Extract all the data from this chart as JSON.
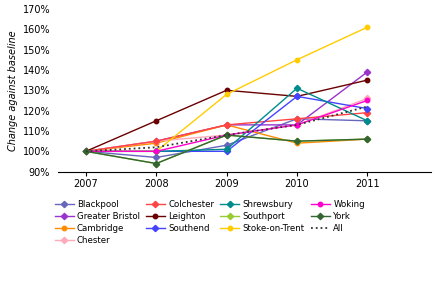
{
  "years": [
    2007,
    2008,
    2009,
    2010,
    2011
  ],
  "series": {
    "Blackpool": {
      "color": "#6666bb",
      "marker": "D",
      "data": [
        100,
        97,
        103,
        116,
        115
      ]
    },
    "Greater Bristol": {
      "color": "#9933cc",
      "marker": "D",
      "data": [
        100,
        105,
        113,
        113,
        139
      ]
    },
    "Cambridge": {
      "color": "#ff8c00",
      "marker": "o",
      "data": [
        100,
        104,
        113,
        104,
        106
      ]
    },
    "Chester": {
      "color": "#ffaabb",
      "marker": "D",
      "data": [
        100,
        105,
        108,
        113,
        126
      ]
    },
    "Colchester": {
      "color": "#ff4444",
      "marker": "D",
      "data": [
        100,
        105,
        113,
        116,
        119
      ]
    },
    "Leighton": {
      "color": "#6B0000",
      "marker": "o",
      "data": [
        100,
        115,
        130,
        127,
        135
      ]
    },
    "Southend": {
      "color": "#4444ff",
      "marker": "D",
      "data": [
        100,
        100,
        100,
        127,
        121
      ]
    },
    "Shrewsbury": {
      "color": "#008B8B",
      "marker": "D",
      "data": [
        100,
        100,
        101,
        131,
        115
      ]
    },
    "Southport": {
      "color": "#99cc33",
      "marker": "D",
      "data": [
        100,
        94,
        108,
        105,
        106
      ]
    },
    "Stoke-on-Trent": {
      "color": "#ffcc00",
      "marker": "o",
      "data": [
        100,
        100,
        128,
        145,
        161
      ]
    },
    "Woking": {
      "color": "#ff00cc",
      "marker": "o",
      "data": [
        100,
        100,
        108,
        113,
        125
      ]
    },
    "York": {
      "color": "#336633",
      "marker": "D",
      "data": [
        100,
        94,
        108,
        105,
        106
      ]
    },
    "All": {
      "color": "#333333",
      "marker": null,
      "data": [
        100,
        102,
        108,
        113,
        122
      ]
    }
  },
  "legend_order": [
    "Blackpool",
    "Greater Bristol",
    "Cambridge",
    "Chester",
    "Colchester",
    "Leighton",
    "Southend",
    "Shrewsbury",
    "Southport",
    "Stoke-on-Trent",
    "Woking",
    "York",
    "All"
  ],
  "ylabel": "Change against baseline",
  "ylim": [
    90,
    170
  ],
  "yticks": [
    90,
    100,
    110,
    120,
    130,
    140,
    150,
    160,
    170
  ],
  "xlim": [
    2006.6,
    2011.9
  ],
  "figwidth": 4.44,
  "figheight": 2.96,
  "dpi": 100
}
